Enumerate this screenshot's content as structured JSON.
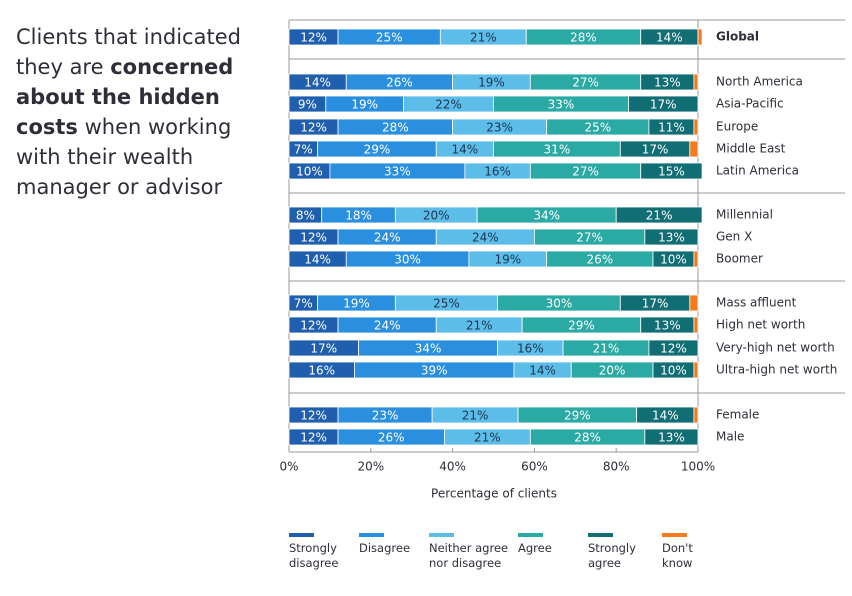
{
  "chart_data": {
    "type": "stacked-bar-horizontal",
    "title": [
      "Clients that indicated they are ",
      "concerned about the hidden costs",
      " when working with their wealth manager or advisor"
    ],
    "x_label": "Percentage of clients",
    "categories": [
      "Global",
      "North America",
      "Asia-Pacific",
      "Europe",
      "Middle East",
      "Latin America",
      "Millennial",
      "Gen X",
      "Boomer",
      "Mass affluent",
      "High net worth",
      "Very-high net worth",
      "Ultra-high net worth",
      "Female",
      "Male"
    ],
    "xlim": [
      0,
      100
    ],
    "xticks": [
      {
        "value": 0,
        "label": "0%"
      },
      {
        "value": 20,
        "label": "20%"
      },
      {
        "value": 40,
        "label": "40%"
      },
      {
        "value": 60,
        "label": "60%"
      },
      {
        "value": 80,
        "label": "80%"
      },
      {
        "value": 100,
        "label": "100%"
      }
    ],
    "series": [
      {
        "name": "Strongly disagree",
        "color": "#1f5fae",
        "values": [
          12,
          14,
          9,
          12,
          7,
          10,
          8,
          12,
          14,
          7,
          12,
          17,
          16,
          12,
          12
        ],
        "value_labels": [
          "12%",
          "14%",
          "9%",
          "12%",
          "7%",
          "10%",
          "8%",
          "12%",
          "14%",
          "7%",
          "12%",
          "17%",
          "16%",
          "12%",
          "12%"
        ]
      },
      {
        "name": "Disagree",
        "color": "#2a8fdf",
        "values": [
          25,
          26,
          19,
          28,
          29,
          33,
          18,
          24,
          30,
          19,
          24,
          34,
          39,
          23,
          26
        ],
        "value_labels": [
          "25%",
          "26%",
          "19%",
          "28%",
          "29%",
          "33%",
          "18%",
          "24%",
          "30%",
          "19%",
          "24%",
          "34%",
          "39%",
          "23%",
          "26%"
        ]
      },
      {
        "name": "Neither agree nor disagree",
        "color": "#5cbde9",
        "values": [
          21,
          19,
          22,
          23,
          14,
          16,
          20,
          24,
          19,
          25,
          21,
          16,
          14,
          21,
          21
        ],
        "value_labels": [
          "21%",
          "19%",
          "22%",
          "23%",
          "14%",
          "16%",
          "20%",
          "24%",
          "19%",
          "25%",
          "21%",
          "16%",
          "14%",
          "21%",
          "21%"
        ]
      },
      {
        "name": "Agree",
        "color": "#2ba9a5",
        "values": [
          28,
          27,
          33,
          25,
          31,
          27,
          34,
          27,
          26,
          30,
          29,
          21,
          20,
          29,
          28
        ],
        "value_labels": [
          "28%",
          "27%",
          "33%",
          "25%",
          "31%",
          "27%",
          "34%",
          "27%",
          "26%",
          "30%",
          "29%",
          "21%",
          "20%",
          "29%",
          "28%"
        ]
      },
      {
        "name": "Strongly agree",
        "color": "#116e75",
        "values": [
          14,
          13,
          17,
          11,
          17,
          15,
          21,
          13,
          10,
          17,
          13,
          12,
          10,
          14,
          13
        ],
        "value_labels": [
          "14%",
          "13%",
          "17%",
          "11%",
          "17%",
          "15%",
          "21%",
          "13%",
          "10%",
          "17%",
          "13%",
          "12%",
          "10%",
          "14%",
          "13%"
        ]
      },
      {
        "name": "Don't know",
        "color": "#f47a20",
        "values": [
          1,
          1,
          0,
          1,
          2,
          0,
          0,
          0,
          1,
          2,
          1,
          0,
          1,
          1,
          0
        ]
      }
    ]
  }
}
